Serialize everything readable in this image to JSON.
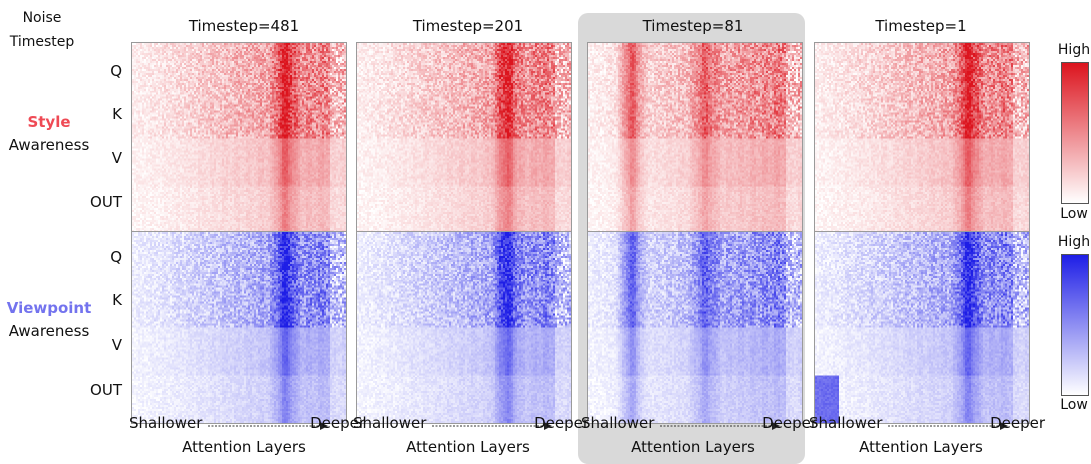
{
  "corner_label": "Noise\nTimestep",
  "timesteps": [
    "Timestep=481",
    "Timestep=201",
    "Timestep=81",
    "Timestep=1"
  ],
  "highlighted_timestep_index": 2,
  "row_labels": [
    "Q",
    "K",
    "V",
    "OUT"
  ],
  "rows": [
    {
      "name": "Style",
      "sub": "Awareness",
      "name_color": "#ef4a55",
      "cmap_high": "#dc141e"
    },
    {
      "name": "Viewpoint",
      "sub": "Awareness",
      "name_color": "#7373ee",
      "cmap_high": "#1e1ee6"
    }
  ],
  "x_axis": {
    "low": "Shallower",
    "high": "Deeper",
    "title": "Attention Layers"
  },
  "colorbar": {
    "high": "High",
    "low": "Low"
  },
  "chart_data": {
    "type": "heatmap",
    "grid": "4 x 2 panels",
    "columns": [
      "Timestep=481",
      "Timestep=201",
      "Timestep=81",
      "Timestep=1"
    ],
    "rows": [
      "Style Awareness",
      "Viewpoint Awareness"
    ],
    "y_categories": [
      "Q",
      "K",
      "V",
      "OUT"
    ],
    "x_label": "Attention Layers",
    "x_direction": [
      "Shallower",
      "Deeper"
    ],
    "value_scale": [
      "Low",
      "High"
    ]
  }
}
